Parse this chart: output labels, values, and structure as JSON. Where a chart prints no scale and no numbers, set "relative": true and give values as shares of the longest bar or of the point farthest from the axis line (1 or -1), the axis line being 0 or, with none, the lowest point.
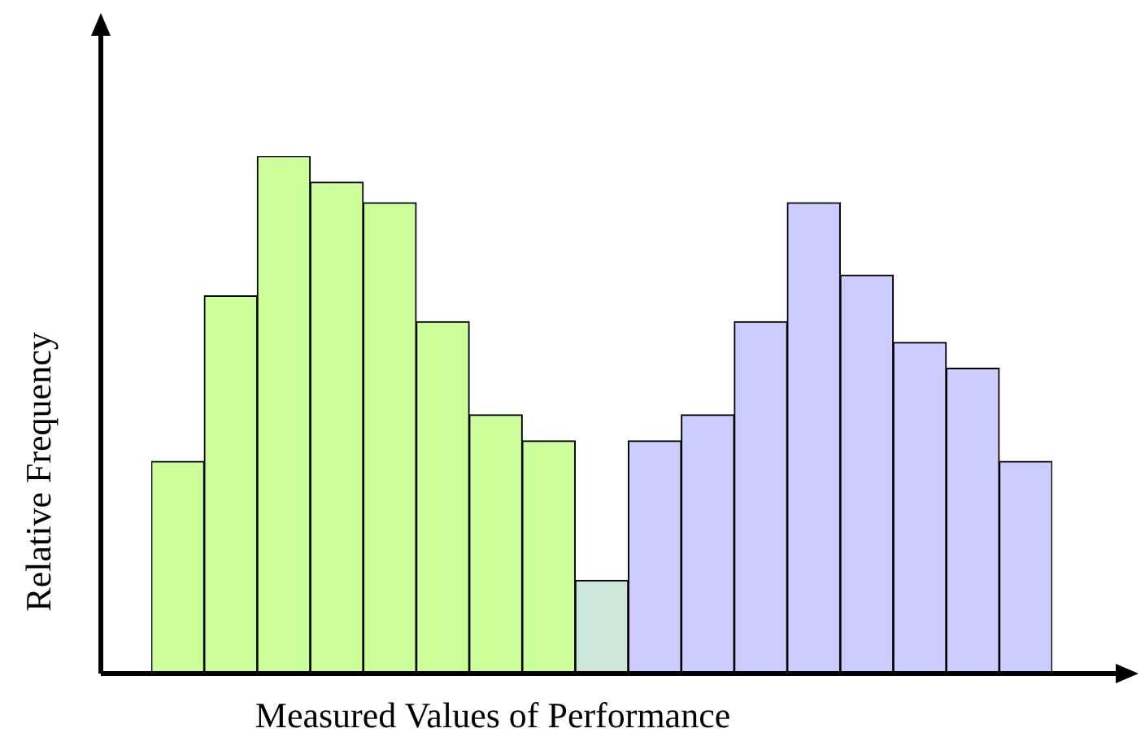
{
  "chart_data": {
    "type": "bar",
    "relative": true,
    "xlabel": "Measured Values of Performance",
    "ylabel": "Relative Frequency",
    "categories": [
      null,
      null,
      null,
      null,
      null,
      null,
      null,
      null,
      null,
      null,
      null,
      null,
      null,
      null,
      null,
      null,
      null
    ],
    "values": [
      0.41,
      0.73,
      1,
      0.95,
      0.91,
      0.68,
      0.5,
      0.45,
      0.18,
      0.45,
      0.5,
      0.68,
      0.91,
      0.77,
      0.64,
      0.59,
      0.41
    ],
    "colors": [
      "#ccff99",
      "#ccff99",
      "#ccff99",
      "#ccff99",
      "#ccff99",
      "#ccff99",
      "#ccff99",
      "#ccff99",
      "#cce6d9",
      "#ccccff",
      "#ccccff",
      "#ccccff",
      "#ccccff",
      "#ccccff",
      "#ccccff",
      "#ccccff",
      "#ccccff"
    ],
    "legend": false
  }
}
